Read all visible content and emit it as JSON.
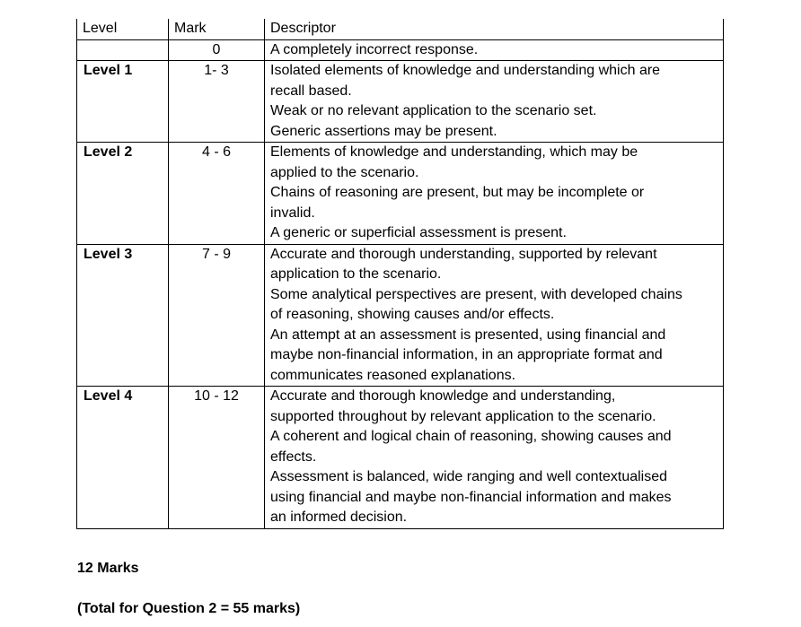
{
  "headers": {
    "level": "Level",
    "mark": "Mark",
    "descriptor": "Descriptor"
  },
  "rows": [
    {
      "level": "",
      "mark": "0",
      "lines": [
        "A completely incorrect response."
      ]
    },
    {
      "level": "Level 1",
      "mark": "1-  3",
      "lines": [
        "Isolated elements of knowledge and understanding which are",
        "recall based.",
        "Weak or no relevant application to the scenario set.",
        "Generic assertions may be present."
      ]
    },
    {
      "level": "Level 2",
      "mark": "4 - 6",
      "lines": [
        "Elements of knowledge and understanding, which may be",
        "applied to the scenario.",
        "Chains of reasoning are present, but may be incomplete or",
        "invalid.",
        "A generic or superficial assessment is present."
      ]
    },
    {
      "level": "Level 3",
      "mark": "7 - 9",
      "lines": [
        "Accurate and thorough understanding, supported by relevant",
        "application to the scenario.",
        "Some analytical perspectives are present, with developed chains",
        "of reasoning, showing causes and/or effects.",
        "An attempt at an assessment is presented, using financial and",
        "maybe non-financial information, in an appropriate format and",
        "communicates reasoned explanations."
      ]
    },
    {
      "level": "Level 4",
      "mark": "10 - 12",
      "lines": [
        "Accurate and thorough knowledge and understanding,",
        "supported throughout by relevant application to the scenario.",
        "A coherent and logical chain of reasoning, showing causes and",
        "effects.",
        "Assessment is balanced, wide ranging and well contextualised",
        "using financial and maybe non-financial information and makes",
        "an informed decision."
      ]
    }
  ],
  "marks": "12  Marks",
  "total": "(Total for Question 2 = 55 marks)"
}
